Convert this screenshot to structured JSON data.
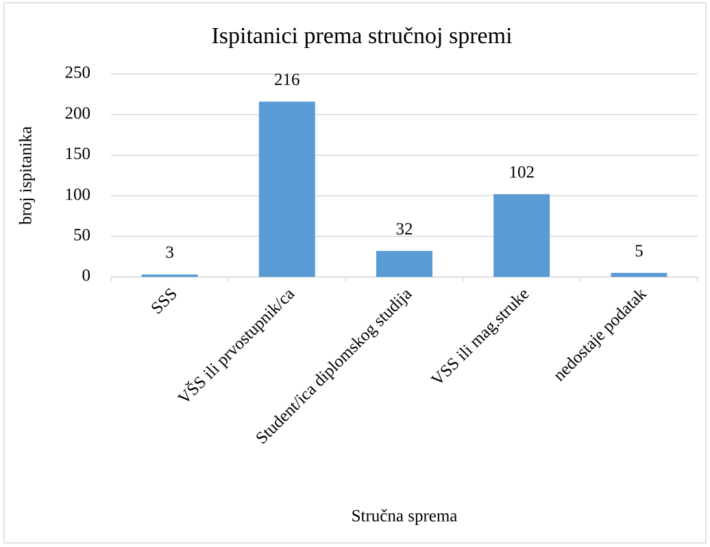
{
  "chart_data": {
    "type": "bar",
    "title": "Ispitanici prema stručnoj spremi",
    "y_label": "broj ispitanika",
    "x_label": "Stručna sprema",
    "categories": [
      "SSS",
      "VŠS ili prvostupnik/ca",
      "Student/ica diplomskog studija",
      "VSS ili mag.struke",
      "nedostaje podatak"
    ],
    "values": [
      3,
      216,
      32,
      102,
      5
    ],
    "color": "#5b9bd5",
    "ylim": [
      0,
      250
    ],
    "yticks": [
      0,
      50,
      100,
      150,
      200,
      250
    ],
    "grid": true
  }
}
